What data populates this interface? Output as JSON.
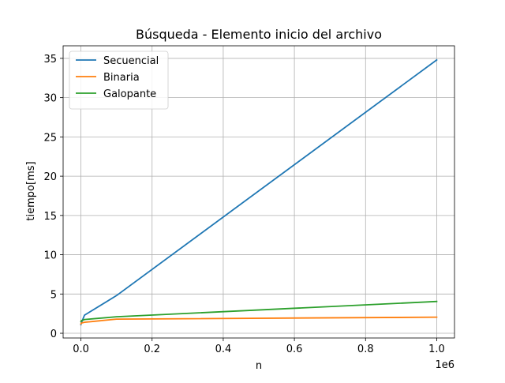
{
  "chart_data": {
    "type": "line",
    "title": "Búsqueda - Elemento inicio del archivo",
    "xlabel": "n",
    "ylabel": "tiempo[ms]",
    "x_offset_label": "1e6",
    "xlim": [
      -50000,
      1050000
    ],
    "ylim": [
      -0.6,
      36.6
    ],
    "x_ticks": [
      0,
      200000,
      400000,
      600000,
      800000,
      1000000
    ],
    "x_tick_labels": [
      "0.0",
      "0.2",
      "0.4",
      "0.6",
      "0.8",
      "1.0"
    ],
    "y_ticks": [
      0,
      5,
      10,
      15,
      20,
      25,
      30,
      35
    ],
    "y_tick_labels": [
      "0",
      "5",
      "10",
      "15",
      "20",
      "25",
      "30",
      "35"
    ],
    "grid": true,
    "legend_position": "top-left",
    "series": [
      {
        "name": "Secuencial",
        "color": "#1f77b4",
        "x": [
          100,
          1000,
          10000,
          100000,
          1000000
        ],
        "y": [
          1.1,
          1.3,
          2.3,
          4.8,
          34.8
        ]
      },
      {
        "name": "Binaria",
        "color": "#ff7f0e",
        "x": [
          100,
          1000,
          10000,
          100000,
          1000000
        ],
        "y": [
          1.2,
          1.3,
          1.4,
          1.8,
          2.05
        ]
      },
      {
        "name": "Galopante",
        "color": "#2ca02c",
        "x": [
          100,
          1000,
          10000,
          100000,
          1000000
        ],
        "y": [
          1.5,
          1.6,
          1.75,
          2.1,
          4.05
        ]
      }
    ]
  }
}
